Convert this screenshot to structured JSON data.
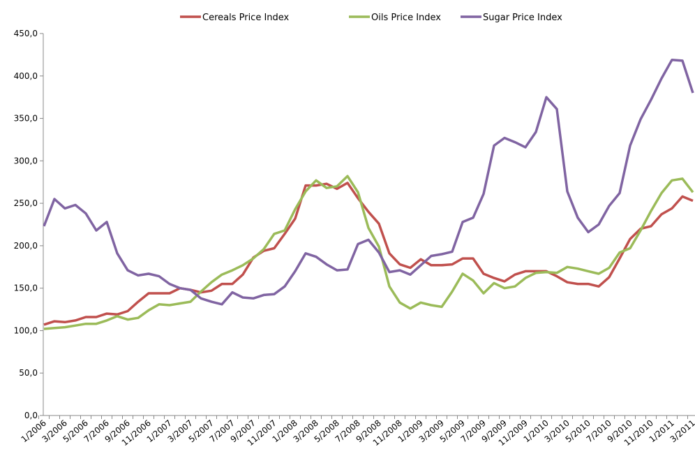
{
  "chart_data": {
    "type": "line",
    "categories": [
      "1/2006",
      null,
      "3/2006",
      null,
      "5/2006",
      null,
      "7/2006",
      null,
      "9/2006",
      null,
      "11/2006",
      null,
      "1/2007",
      null,
      "3/2007",
      null,
      "5/2007",
      null,
      "7/2007",
      null,
      "9/2007",
      null,
      "11/2007",
      null,
      "1/2008",
      null,
      "3/2008",
      null,
      "5/2008",
      null,
      "7/2008",
      null,
      "9/2008",
      null,
      "11/2008",
      null,
      "1/2009",
      null,
      "3/2009",
      null,
      "5/2009",
      null,
      "7/2009",
      null,
      "9/2009",
      null,
      "11/2009",
      null,
      "1/2010",
      null,
      "3/2010",
      null,
      "5/2010",
      null,
      "7/2010",
      null,
      "9/2010",
      null,
      "11/2010",
      null,
      "1/2011",
      null,
      "3/2011"
    ],
    "series": [
      {
        "name": "Cereals Price Index",
        "color": "#c0504d",
        "values": [
          107,
          111,
          110,
          112,
          116,
          116,
          120,
          119,
          123,
          134,
          144,
          144,
          144,
          150,
          148,
          145,
          147,
          155,
          155,
          166,
          186,
          194,
          197,
          214,
          232,
          271,
          271,
          273,
          267,
          274,
          256,
          240,
          226,
          191,
          178,
          174,
          184,
          177,
          177,
          178,
          185,
          185,
          167,
          162,
          158,
          166,
          170,
          170,
          170,
          164,
          157,
          155,
          155,
          152,
          163,
          185,
          208,
          220,
          223,
          237,
          244,
          258,
          253
        ]
      },
      {
        "name": "Oils Price Index",
        "color": "#9bbb59",
        "values": [
          102,
          103,
          104,
          106,
          108,
          108,
          112,
          117,
          113,
          115,
          124,
          131,
          130,
          132,
          134,
          146,
          157,
          166,
          171,
          177,
          185,
          196,
          214,
          218,
          243,
          264,
          277,
          268,
          270,
          282,
          263,
          221,
          199,
          152,
          133,
          126,
          133,
          130,
          128,
          146,
          167,
          159,
          144,
          156,
          150,
          152,
          162,
          168,
          169,
          168,
          175,
          173,
          170,
          167,
          174,
          192,
          197,
          218,
          241,
          262,
          277,
          279,
          263
        ]
      },
      {
        "name": "Sugar Price Index",
        "color": "#8064a2",
        "values": [
          223,
          255,
          244,
          248,
          238,
          218,
          228,
          191,
          171,
          165,
          167,
          164,
          155,
          150,
          148,
          138,
          134,
          131,
          145,
          139,
          138,
          142,
          143,
          152,
          170,
          191,
          187,
          178,
          171,
          172,
          202,
          207,
          192,
          169,
          171,
          166,
          177,
          188,
          190,
          193,
          228,
          233,
          261,
          318,
          327,
          322,
          316,
          334,
          375,
          361,
          264,
          233,
          216,
          225,
          247,
          262,
          318,
          349,
          372,
          397,
          419,
          418,
          380
        ]
      }
    ],
    "ylim": [
      0,
      450
    ],
    "yticks": [
      {
        "value": 0,
        "label": "0,0"
      },
      {
        "value": 50,
        "label": "50,0"
      },
      {
        "value": 100,
        "label": "100,0"
      },
      {
        "value": 150,
        "label": "150,0"
      },
      {
        "value": 200,
        "label": "200,0"
      },
      {
        "value": 250,
        "label": "250,0"
      },
      {
        "value": 300,
        "label": "300,0"
      },
      {
        "value": 350,
        "label": "350,0"
      },
      {
        "value": 400,
        "label": "400,0"
      },
      {
        "value": 450,
        "label": "450,0"
      }
    ],
    "grid": false,
    "legend": "top"
  }
}
